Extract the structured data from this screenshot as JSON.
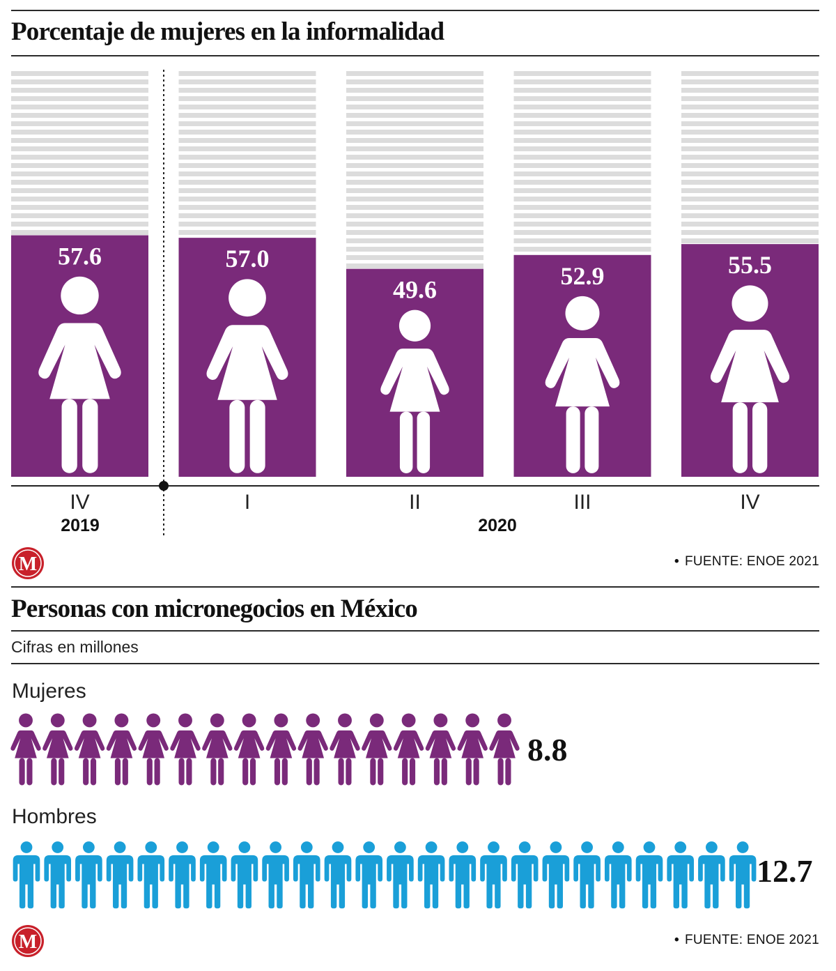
{
  "colors": {
    "purple": "#7a2a7a",
    "stripe": "#dcdcdc",
    "blue": "#1a9fd8",
    "logo_red": "#c8202a"
  },
  "section1": {
    "title": "Porcentaje de mujeres en la informalidad",
    "source": "FUENTE: ENOE 2021"
  },
  "section2": {
    "title": "Personas con micronegocios en México",
    "subtitle": "Cifras en millones",
    "source": "FUENTE: ENOE 2021"
  },
  "logo": {
    "letter": "M"
  },
  "chart_data": [
    {
      "type": "bar",
      "title": "Porcentaje de mujeres en la informalidad",
      "icon": "woman-icon",
      "categories": [
        "IV",
        "I",
        "II",
        "III",
        "IV"
      ],
      "years": [
        {
          "label": "2019",
          "quarters": [
            "IV"
          ]
        },
        {
          "label": "2020",
          "quarters": [
            "I",
            "II",
            "III",
            "IV"
          ]
        }
      ],
      "values": [
        57.6,
        57.0,
        49.6,
        52.9,
        55.5
      ],
      "value_labels": [
        "57.6",
        "57.0",
        "49.6",
        "52.9",
        "55.5"
      ],
      "ylim": [
        0,
        100
      ],
      "xlabel": "",
      "ylabel": ""
    },
    {
      "type": "bar",
      "title": "Personas con micronegocios en México",
      "subtitle": "Cifras en millones",
      "categories": [
        "Mujeres",
        "Hombres"
      ],
      "series": [
        {
          "name": "Mujeres",
          "value": 8.8,
          "value_label": "8.8",
          "icon": "woman-icon",
          "icon_count": 16
        },
        {
          "name": "Hombres",
          "value": 12.7,
          "value_label": "12.7",
          "icon": "man-icon",
          "icon_count": 24
        }
      ]
    }
  ]
}
